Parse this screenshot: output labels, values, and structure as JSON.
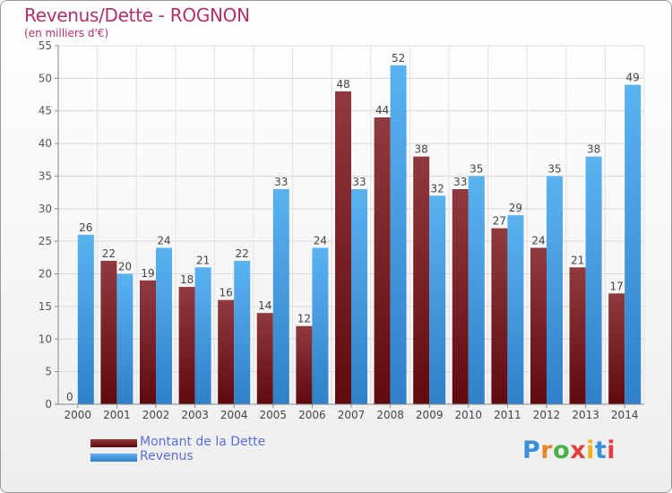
{
  "header": {
    "title": "Revenus/Dette - ROGNON",
    "subtitle": "(en milliers d'€)"
  },
  "chart_data": {
    "type": "bar",
    "title": "Revenus/Dette - ROGNON",
    "ylabel": "(en milliers d'€)",
    "xlabel": "",
    "categories": [
      "2000",
      "2001",
      "2002",
      "2003",
      "2004",
      "2005",
      "2006",
      "2007",
      "2008",
      "2009",
      "2010",
      "2011",
      "2012",
      "2013",
      "2014"
    ],
    "series": [
      {
        "name": "Montant de la Dette",
        "color": "#7b2a2e",
        "values": [
          0,
          22,
          19,
          18,
          16,
          14,
          12,
          48,
          44,
          38,
          33,
          27,
          24,
          21,
          17
        ]
      },
      {
        "name": "Revenus",
        "color": "#4aa3e3",
        "values": [
          26,
          20,
          24,
          21,
          22,
          33,
          24,
          33,
          52,
          32,
          35,
          29,
          35,
          38,
          49
        ]
      }
    ],
    "ylim": [
      0,
      55
    ],
    "yticks": [
      0,
      5,
      10,
      15,
      20,
      25,
      30,
      35,
      40,
      45,
      50,
      55
    ],
    "grid": true,
    "legend": "bottom-left"
  },
  "legend": {
    "items": [
      {
        "label": "Montant de la Dette",
        "color": "#7b2a2e"
      },
      {
        "label": "Revenus",
        "color": "#4aa3e3"
      }
    ]
  },
  "logo": {
    "letters": [
      "P",
      "r",
      "o",
      "x",
      "i",
      "t",
      "i"
    ],
    "colors": [
      "#3a8fd8",
      "#e8862a",
      "#4ab04a",
      "#e04040",
      "#f0b020",
      "#3a8fd8",
      "#e04040"
    ]
  }
}
